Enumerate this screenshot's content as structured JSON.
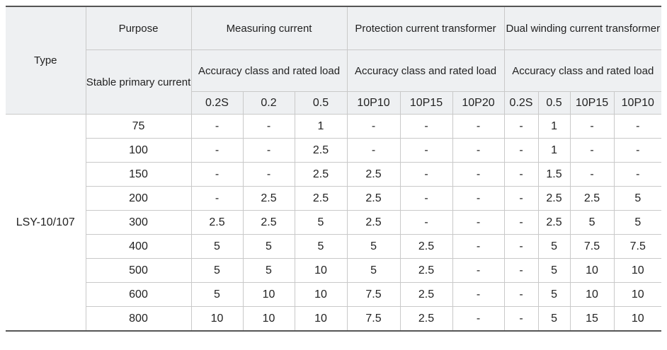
{
  "header": {
    "type_label": "Type",
    "purpose_label": "Purpose",
    "measuring_label": "Measuring current",
    "protection_label": "Protection current transformer",
    "dual_label": "Dual winding current transformer",
    "stable_primary_label": "Stable primary current",
    "accuracy_measuring": "Accuracy class and rated load",
    "accuracy_protection": "Accuracy class and rated load",
    "accuracy_dual": "Accuracy class and rated load",
    "classes": [
      "0.2S",
      "0.2",
      "0.5",
      "10P10",
      "10P15",
      "10P20",
      "0.2S",
      "0.5",
      "10P15",
      "10P10"
    ]
  },
  "type_value": "LSY-10/107",
  "rows": [
    {
      "current": "75",
      "values": [
        "-",
        "-",
        "1",
        "-",
        "-",
        "-",
        "-",
        "1",
        "-",
        "-"
      ]
    },
    {
      "current": "100",
      "values": [
        "-",
        "-",
        "2.5",
        "-",
        "-",
        "-",
        "-",
        "1",
        "-",
        "-"
      ]
    },
    {
      "current": "150",
      "values": [
        "-",
        "-",
        "2.5",
        "2.5",
        "-",
        "-",
        "-",
        "1.5",
        "-",
        "-"
      ]
    },
    {
      "current": "200",
      "values": [
        "-",
        "2.5",
        "2.5",
        "2.5",
        "-",
        "-",
        "-",
        "2.5",
        "2.5",
        "5"
      ]
    },
    {
      "current": "300",
      "values": [
        "2.5",
        "2.5",
        "5",
        "2.5",
        "-",
        "-",
        "-",
        "2.5",
        "5",
        "5"
      ]
    },
    {
      "current": "400",
      "values": [
        "5",
        "5",
        "5",
        "5",
        "2.5",
        "-",
        "-",
        "5",
        "7.5",
        "7.5"
      ]
    },
    {
      "current": "500",
      "values": [
        "5",
        "5",
        "10",
        "5",
        "2.5",
        "-",
        "-",
        "5",
        "10",
        "10"
      ]
    },
    {
      "current": "600",
      "values": [
        "5",
        "10",
        "10",
        "7.5",
        "2.5",
        "-",
        "-",
        "5",
        "10",
        "10"
      ]
    },
    {
      "current": "800",
      "values": [
        "10",
        "10",
        "10",
        "7.5",
        "2.5",
        "-",
        "-",
        "5",
        "15",
        "10"
      ]
    }
  ]
}
